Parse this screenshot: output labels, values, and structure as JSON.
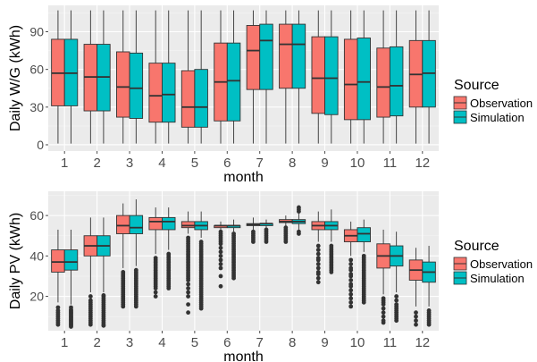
{
  "colors": {
    "observation": "#F8766D",
    "simulation": "#00BFC4",
    "panel": "#EBEBEB",
    "grid_major": "#FFFFFF",
    "grid_minor": "#F5F5F5",
    "outline": "#333333",
    "text": "#4D4D4D"
  },
  "chart_data": [
    {
      "type": "boxplot",
      "xlabel": "month",
      "ylabel": "Daily W/G (kWh)",
      "categories": [
        "1",
        "2",
        "3",
        "4",
        "5",
        "6",
        "7",
        "8",
        "9",
        "10",
        "11",
        "12"
      ],
      "yticks": [
        0,
        30,
        60,
        90
      ],
      "ylim": [
        -5,
        111
      ],
      "legend": {
        "title": "Source",
        "position": "right",
        "entries": [
          "Observation",
          "Simulation"
        ]
      },
      "grid": true,
      "series": [
        {
          "name": "Observation",
          "color": "#F8766D",
          "boxes": [
            {
              "min": 1,
              "q1": 31,
              "median": 57,
              "q3": 84,
              "max": 107,
              "outliers": []
            },
            {
              "min": 1,
              "q1": 27,
              "median": 54,
              "q3": 80,
              "max": 107,
              "outliers": []
            },
            {
              "min": 1,
              "q1": 22,
              "median": 46,
              "q3": 74,
              "max": 107,
              "outliers": []
            },
            {
              "min": 1,
              "q1": 18,
              "median": 39,
              "q3": 65,
              "max": 107,
              "outliers": []
            },
            {
              "min": 1,
              "q1": 14,
              "median": 30,
              "q3": 59,
              "max": 107,
              "outliers": []
            },
            {
              "min": 1,
              "q1": 19,
              "median": 50,
              "q3": 81,
              "max": 107,
              "outliers": []
            },
            {
              "min": 1,
              "q1": 44,
              "median": 75,
              "q3": 95,
              "max": 107,
              "outliers": []
            },
            {
              "min": 1,
              "q1": 45,
              "median": 80,
              "q3": 96,
              "max": 107,
              "outliers": []
            },
            {
              "min": 1,
              "q1": 25,
              "median": 53,
              "q3": 86,
              "max": 107,
              "outliers": []
            },
            {
              "min": 1,
              "q1": 20,
              "median": 48,
              "q3": 84,
              "max": 107,
              "outliers": []
            },
            {
              "min": 1,
              "q1": 22,
              "median": 46,
              "q3": 77,
              "max": 107,
              "outliers": []
            },
            {
              "min": 1,
              "q1": 30,
              "median": 56,
              "q3": 83,
              "max": 107,
              "outliers": []
            }
          ]
        },
        {
          "name": "Simulation",
          "color": "#00BFC4",
          "boxes": [
            {
              "min": 1,
              "q1": 31,
              "median": 57,
              "q3": 84,
              "max": 107,
              "outliers": []
            },
            {
              "min": 1,
              "q1": 27,
              "median": 54,
              "q3": 80,
              "max": 107,
              "outliers": []
            },
            {
              "min": 1,
              "q1": 21,
              "median": 45,
              "q3": 73,
              "max": 107,
              "outliers": []
            },
            {
              "min": 1,
              "q1": 18,
              "median": 40,
              "q3": 65,
              "max": 107,
              "outliers": []
            },
            {
              "min": 1,
              "q1": 14,
              "median": 30,
              "q3": 60,
              "max": 107,
              "outliers": []
            },
            {
              "min": 1,
              "q1": 19,
              "median": 51,
              "q3": 81,
              "max": 107,
              "outliers": []
            },
            {
              "min": 1,
              "q1": 44,
              "median": 83,
              "q3": 96,
              "max": 107,
              "outliers": []
            },
            {
              "min": 1,
              "q1": 45,
              "median": 80,
              "q3": 96,
              "max": 107,
              "outliers": []
            },
            {
              "min": 1,
              "q1": 24,
              "median": 53,
              "q3": 86,
              "max": 107,
              "outliers": []
            },
            {
              "min": 1,
              "q1": 20,
              "median": 50,
              "q3": 85,
              "max": 107,
              "outliers": []
            },
            {
              "min": 1,
              "q1": 23,
              "median": 47,
              "q3": 78,
              "max": 107,
              "outliers": []
            },
            {
              "min": 1,
              "q1": 30,
              "median": 57,
              "q3": 83,
              "max": 107,
              "outliers": []
            }
          ]
        }
      ]
    },
    {
      "type": "boxplot",
      "xlabel": "month",
      "ylabel": "Daily PV (kWh)",
      "categories": [
        "1",
        "2",
        "3",
        "4",
        "5",
        "6",
        "7",
        "8",
        "9",
        "10",
        "11",
        "12"
      ],
      "yticks": [
        20,
        40,
        60
      ],
      "ylim": [
        3,
        72
      ],
      "legend": {
        "title": "Source",
        "position": "right",
        "entries": [
          "Observation",
          "Simulation"
        ]
      },
      "grid": true,
      "series": [
        {
          "name": "Observation",
          "color": "#F8766D",
          "boxes": [
            {
              "min": 17,
              "q1": 32,
              "median": 37,
              "q3": 43,
              "max": 53,
              "outliers": [
                14.5,
                13,
                12,
                11,
                10,
                9,
                8,
                7,
                6
              ]
            },
            {
              "min": 22,
              "q1": 40,
              "median": 45,
              "q3": 50,
              "max": 59,
              "outliers": [
                20,
                18,
                17,
                16,
                15,
                14,
                13,
                12,
                11,
                10,
                9,
                8,
                7,
                6
              ]
            },
            {
              "min": 34,
              "q1": 51,
              "median": 55,
              "q3": 60,
              "max": 66,
              "outliers": [
                32,
                31,
                30,
                29,
                28,
                27,
                26,
                25,
                24,
                23,
                22,
                21,
                20,
                19,
                18,
                17,
                16,
                15
              ]
            },
            {
              "min": 41,
              "q1": 53,
              "median": 57,
              "q3": 59,
              "max": 64,
              "outliers": [
                39,
                38,
                37,
                36,
                35,
                34,
                33,
                32,
                31,
                30,
                29,
                28,
                27,
                26,
                25,
                24,
                22,
                20
              ]
            },
            {
              "min": 51,
              "q1": 54,
              "median": 55,
              "q3": 57,
              "max": 62,
              "outliers": [
                49,
                48,
                47,
                46,
                45,
                44,
                43,
                42,
                41,
                40,
                39,
                38,
                37,
                36,
                35,
                34,
                33,
                32,
                31,
                30,
                29,
                28,
                26,
                24,
                22,
                20,
                16,
                12
              ]
            },
            {
              "min": 53,
              "q1": 54,
              "median": 55,
              "q3": 55,
              "max": 57,
              "outliers": [
                52,
                51,
                50,
                49,
                48,
                47,
                46,
                44,
                42,
                40,
                38,
                36,
                34,
                30,
                25
              ]
            },
            {
              "min": 53,
              "q1": 55,
              "median": 55.5,
              "q3": 56,
              "max": 59,
              "outliers": [
                52,
                51,
                50,
                49,
                48,
                47
              ]
            },
            {
              "min": 55,
              "q1": 56.5,
              "median": 57,
              "q3": 58,
              "max": 60,
              "outliers": [
                54,
                53,
                52,
                51,
                50,
                49,
                48,
                47
              ]
            },
            {
              "min": 47,
              "q1": 53,
              "median": 55,
              "q3": 57,
              "max": 62,
              "outliers": [
                45,
                43,
                41,
                39,
                38,
                36,
                34,
                32,
                31,
                29,
                27
              ]
            },
            {
              "min": 40,
              "q1": 47,
              "median": 50,
              "q3": 53,
              "max": 57,
              "outliers": [
                38,
                36,
                34,
                33,
                31,
                30,
                28,
                26,
                25,
                23,
                21,
                19,
                17,
                15
              ]
            },
            {
              "min": 21,
              "q1": 34,
              "median": 40,
              "q3": 46,
              "max": 53,
              "outliers": [
                19,
                18,
                17,
                16,
                14,
                12,
                10,
                8,
                7
              ]
            },
            {
              "min": 15,
              "q1": 28,
              "median": 33,
              "q3": 38,
              "max": 44,
              "outliers": [
                12,
                10,
                8,
                6
              ]
            }
          ]
        },
        {
          "name": "Simulation",
          "color": "#00BFC4",
          "boxes": [
            {
              "min": 16,
              "q1": 33,
              "median": 37,
              "q3": 43,
              "max": 53,
              "outliers": [
                14.5,
                13.5,
                13,
                12.5,
                12,
                11.5,
                11,
                10.5,
                10,
                9.5,
                9,
                8.5,
                8,
                7.5,
                7,
                6.5,
                6,
                5.5,
                5
              ]
            },
            {
              "min": 22,
              "q1": 40,
              "median": 45,
              "q3": 50,
              "max": 59,
              "outliers": [
                20.5,
                20,
                19,
                18,
                17,
                16,
                15,
                14,
                13,
                12,
                11,
                10,
                9,
                8,
                7,
                6,
                5.5
              ]
            },
            {
              "min": 35,
              "q1": 51,
              "median": 54,
              "q3": 60,
              "max": 68,
              "outliers": [
                33,
                32,
                31,
                30,
                29,
                28,
                27,
                26,
                25,
                24,
                23,
                22,
                21,
                20,
                19,
                18,
                17,
                16,
                15
              ]
            },
            {
              "min": 43,
              "q1": 53,
              "median": 57,
              "q3": 59,
              "max": 64,
              "outliers": [
                41,
                40,
                39,
                38,
                37,
                36,
                35,
                34,
                33,
                32,
                31,
                30,
                29,
                28,
                27,
                26,
                25,
                24
              ]
            },
            {
              "min": 49,
              "q1": 53,
              "median": 55,
              "q3": 57,
              "max": 62,
              "outliers": [
                47,
                46,
                45,
                44,
                43,
                42,
                41,
                40,
                39,
                38,
                37,
                36,
                35,
                34,
                33,
                32,
                31,
                30,
                29,
                28,
                27,
                26,
                25,
                24,
                23,
                22,
                21,
                20,
                19,
                18,
                17,
                16,
                15,
                14
              ]
            },
            {
              "min": 52,
              "q1": 54,
              "median": 55,
              "q3": 55,
              "max": 58,
              "outliers": [
                51,
                50,
                49,
                48,
                47,
                46,
                45,
                44,
                43,
                42,
                41,
                40,
                39,
                38,
                37,
                36,
                35,
                34,
                33,
                32,
                31,
                30,
                29
              ]
            },
            {
              "min": 54,
              "q1": 55,
              "median": 56,
              "q3": 56,
              "max": 58,
              "outliers": [
                53,
                52,
                51,
                50,
                49,
                48,
                47
              ]
            },
            {
              "min": 53,
              "q1": 56,
              "median": 57,
              "q3": 58,
              "max": 61,
              "outliers": [
                52,
                51,
                64,
                63,
                62
              ]
            },
            {
              "min": 47,
              "q1": 53,
              "median": 55,
              "q3": 57,
              "max": 63,
              "outliers": [
                45,
                44,
                43,
                42,
                41,
                40,
                39,
                38,
                37,
                36,
                35,
                34,
                33,
                32
              ]
            },
            {
              "min": 42,
              "q1": 47,
              "median": 51,
              "q3": 54,
              "max": 58,
              "outliers": [
                40,
                39,
                38,
                37,
                36,
                35,
                34,
                33,
                32,
                31,
                30,
                29,
                28,
                27,
                26,
                25,
                24,
                23,
                22,
                21,
                20,
                19,
                18,
                17
              ]
            },
            {
              "min": 22,
              "q1": 35,
              "median": 40,
              "q3": 45,
              "max": 52,
              "outliers": [
                20,
                18,
                16,
                15,
                14,
                13,
                12,
                11,
                10,
                9,
                8
              ]
            },
            {
              "min": 15,
              "q1": 27,
              "median": 32,
              "q3": 37,
              "max": 45,
              "outliers": [
                13,
                12,
                11,
                10,
                9,
                8,
                7,
                6
              ]
            }
          ]
        }
      ]
    }
  ]
}
